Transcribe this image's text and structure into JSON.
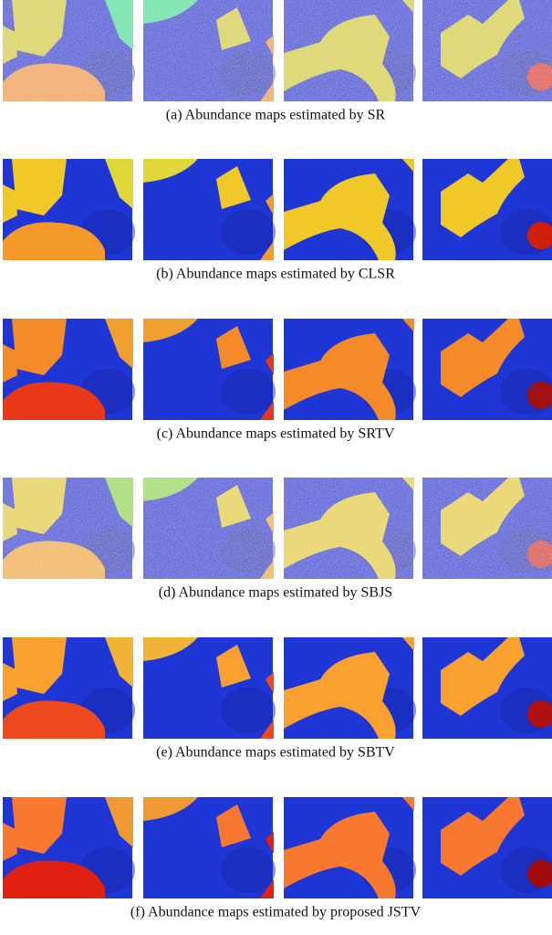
{
  "figure": {
    "captions": [
      "(a) Abundance maps estimated by SR",
      "(b) Abundance maps estimated by CLSR",
      "(c) Abundance maps estimated by SRTV",
      "(d) Abundance maps estimated by SBJS",
      "(e) Abundance maps estimated by SBTV",
      "(f) Abundance maps estimated by proposed JSTV"
    ]
  }
}
